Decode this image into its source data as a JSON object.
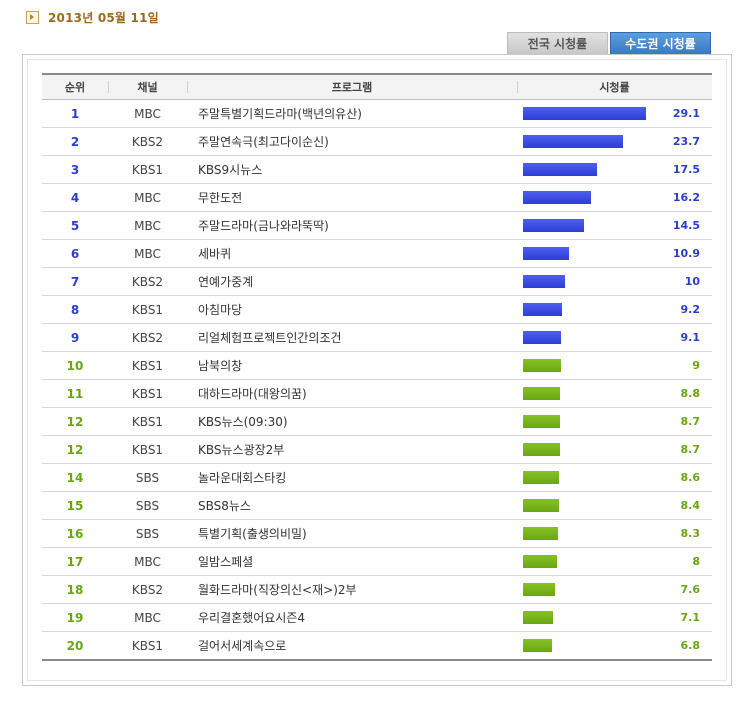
{
  "date": "2013년 05월 11일",
  "tabs": {
    "national": "전국 시청률",
    "capital": "수도권 시청률"
  },
  "headers": {
    "rank": "순위",
    "channel": "채널",
    "program": "프로그램",
    "rating": "시청률"
  },
  "max_rating": 29.1,
  "rows": [
    {
      "rank": "1",
      "channel": "MBC",
      "program": "주말특별기획드라마(백년의유산)",
      "rating": "29.1",
      "value": 29.1,
      "tier": "blue"
    },
    {
      "rank": "2",
      "channel": "KBS2",
      "program": "주말연속극(최고다이순신)",
      "rating": "23.7",
      "value": 23.7,
      "tier": "blue"
    },
    {
      "rank": "3",
      "channel": "KBS1",
      "program": "KBS9시뉴스",
      "rating": "17.5",
      "value": 17.5,
      "tier": "blue"
    },
    {
      "rank": "4",
      "channel": "MBC",
      "program": "무한도전",
      "rating": "16.2",
      "value": 16.2,
      "tier": "blue"
    },
    {
      "rank": "5",
      "channel": "MBC",
      "program": "주말드라마(금나와라뚝딱)",
      "rating": "14.5",
      "value": 14.5,
      "tier": "blue"
    },
    {
      "rank": "6",
      "channel": "MBC",
      "program": "세바퀴",
      "rating": "10.9",
      "value": 10.9,
      "tier": "blue"
    },
    {
      "rank": "7",
      "channel": "KBS2",
      "program": "연예가중계",
      "rating": "10",
      "value": 10,
      "tier": "blue"
    },
    {
      "rank": "8",
      "channel": "KBS1",
      "program": "아침마당",
      "rating": "9.2",
      "value": 9.2,
      "tier": "blue"
    },
    {
      "rank": "9",
      "channel": "KBS2",
      "program": "리얼체험프로젝트인간의조건",
      "rating": "9.1",
      "value": 9.1,
      "tier": "blue"
    },
    {
      "rank": "10",
      "channel": "KBS1",
      "program": "남북의창",
      "rating": "9",
      "value": 9,
      "tier": "green"
    },
    {
      "rank": "11",
      "channel": "KBS1",
      "program": "대하드라마(대왕의꿈)",
      "rating": "8.8",
      "value": 8.8,
      "tier": "green"
    },
    {
      "rank": "12",
      "channel": "KBS1",
      "program": "KBS뉴스(09:30)",
      "rating": "8.7",
      "value": 8.7,
      "tier": "green"
    },
    {
      "rank": "12",
      "channel": "KBS1",
      "program": "KBS뉴스광장2부",
      "rating": "8.7",
      "value": 8.7,
      "tier": "green"
    },
    {
      "rank": "14",
      "channel": "SBS",
      "program": "놀라운대회스타킹",
      "rating": "8.6",
      "value": 8.6,
      "tier": "green"
    },
    {
      "rank": "15",
      "channel": "SBS",
      "program": "SBS8뉴스",
      "rating": "8.4",
      "value": 8.4,
      "tier": "green"
    },
    {
      "rank": "16",
      "channel": "SBS",
      "program": "특별기획(출생의비밀)",
      "rating": "8.3",
      "value": 8.3,
      "tier": "green"
    },
    {
      "rank": "17",
      "channel": "MBC",
      "program": "일밤스페셜",
      "rating": "8",
      "value": 8,
      "tier": "green"
    },
    {
      "rank": "18",
      "channel": "KBS2",
      "program": "월화드라마(직장의신<재>)2부",
      "rating": "7.6",
      "value": 7.6,
      "tier": "green"
    },
    {
      "rank": "19",
      "channel": "MBC",
      "program": "우리결혼했어요시즌4",
      "rating": "7.1",
      "value": 7.1,
      "tier": "green"
    },
    {
      "rank": "20",
      "channel": "KBS1",
      "program": "걸어서세계속으로",
      "rating": "6.8",
      "value": 6.8,
      "tier": "green"
    }
  ]
}
